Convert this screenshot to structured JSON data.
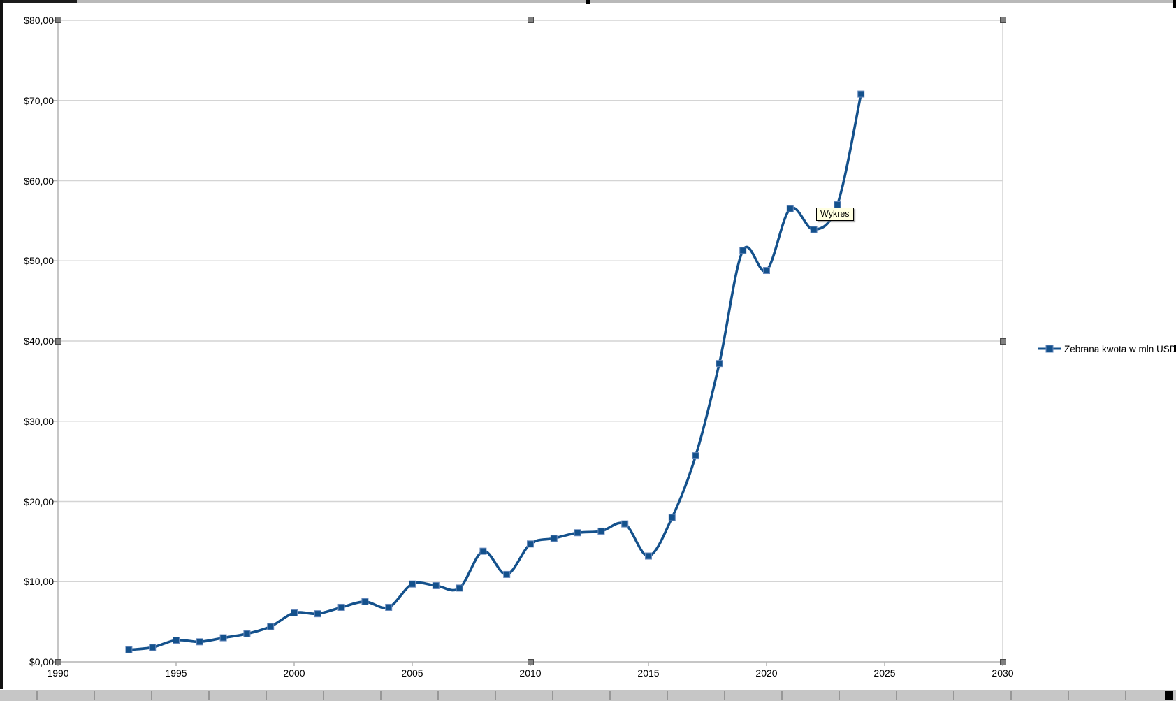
{
  "chart_data": {
    "type": "line",
    "smooth": true,
    "grid": "horizontal",
    "legend_position": "right",
    "series": [
      {
        "name": "Zebrana kwota w mln USD",
        "x": [
          1993,
          1994,
          1995,
          1996,
          1997,
          1998,
          1999,
          2000,
          2001,
          2002,
          2003,
          2004,
          2005,
          2006,
          2007,
          2008,
          2009,
          2010,
          2011,
          2012,
          2013,
          2014,
          2015,
          2016,
          2017,
          2018,
          2019,
          2020,
          2021,
          2022,
          2023,
          2024
        ],
        "values": [
          1.5,
          1.8,
          2.7,
          2.5,
          3.0,
          3.5,
          4.4,
          6.1,
          6.0,
          6.8,
          7.5,
          6.8,
          9.7,
          9.5,
          9.2,
          13.8,
          10.9,
          14.7,
          15.4,
          16.1,
          16.3,
          17.2,
          13.2,
          18.0,
          25.7,
          37.2,
          51.3,
          48.8,
          56.5,
          53.9,
          57.0,
          70.8
        ]
      }
    ],
    "xlim": [
      1990,
      2030
    ],
    "ylim": [
      0,
      80
    ],
    "x_tick_values": [
      1990,
      1995,
      2000,
      2005,
      2010,
      2015,
      2020,
      2025,
      2030
    ],
    "x_tick_labels": [
      "1990",
      "1995",
      "2000",
      "2005",
      "2010",
      "2015",
      "2020",
      "2025",
      "2030"
    ],
    "y_tick_values": [
      0,
      10,
      20,
      30,
      40,
      50,
      60,
      70,
      80
    ],
    "y_tick_labels": [
      "$0,00",
      "$10,00",
      "$20,00",
      "$30,00",
      "$40,00",
      "$50,00",
      "$60,00",
      "$70,00",
      "$80,00"
    ],
    "title": "",
    "xlabel": "",
    "ylabel": ""
  },
  "legend": {
    "label": "Zebrana kwota w mln USD"
  },
  "tooltip": {
    "text": "Wykres"
  },
  "colors": {
    "series_line": "#14518c",
    "marker_edge": "#6688bb",
    "gridline": "#d4d4d4",
    "axis_line": "#b3b3b3",
    "tooltip_bg": "#ffffe1",
    "handle_fill": "#7f7f7f"
  }
}
